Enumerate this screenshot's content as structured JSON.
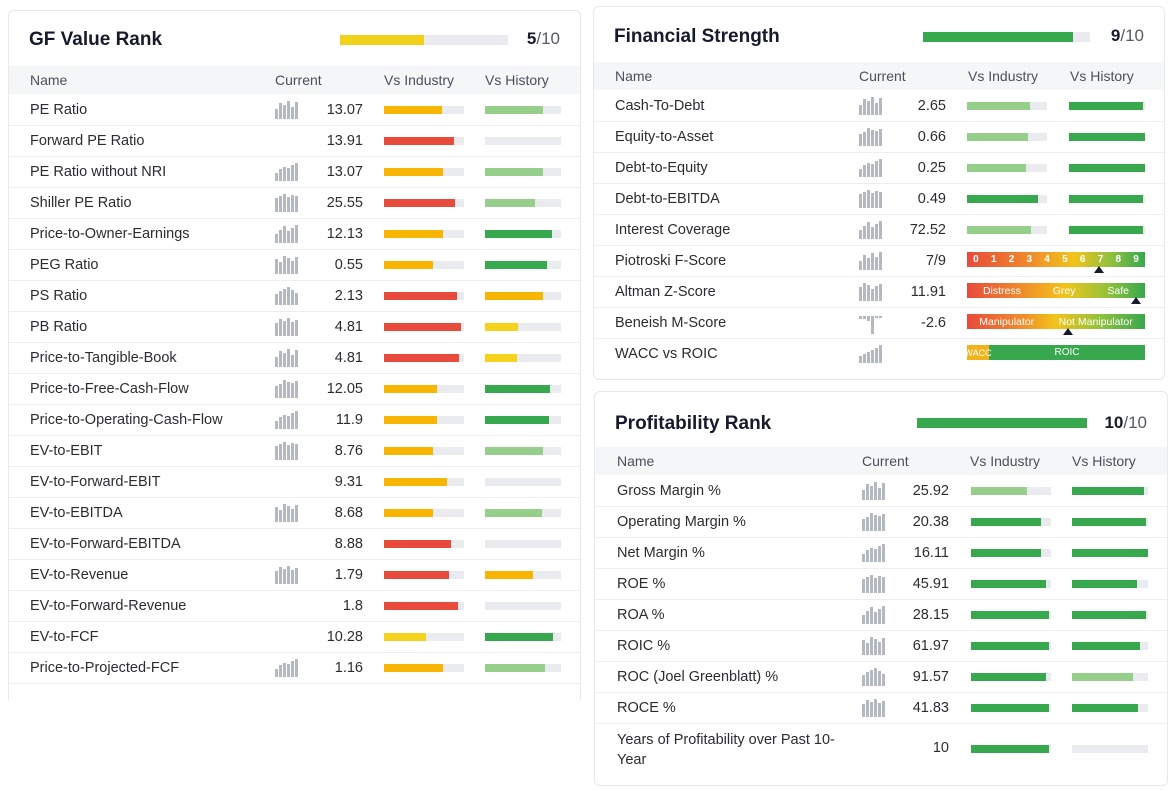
{
  "colors": {
    "red": "#e84a3c",
    "orange": "#f7b500",
    "yellow": "#f5d21b",
    "light_green": "#95cf8b",
    "green": "#37a84d",
    "track": "#e9ebef"
  },
  "columns": {
    "name": "Name",
    "current": "Current",
    "vs_industry": "Vs Industry",
    "vs_history": "Vs History"
  },
  "gf_value_rank": {
    "title": "GF Value Rank",
    "score": "5",
    "max": "/10",
    "fraction": 0.5,
    "bar_color": "#f2d11a",
    "rows": [
      {
        "name": "PE Ratio",
        "value": "13.07",
        "spark": true,
        "industry": 0.73,
        "industry_color": "orange",
        "history": 0.76,
        "history_color": "light_green"
      },
      {
        "name": "Forward PE Ratio",
        "value": "13.91",
        "spark": false,
        "industry": 0.88,
        "industry_color": "red",
        "history": 0.0,
        "history_color": "light_green"
      },
      {
        "name": "PE Ratio without NRI",
        "value": "13.07",
        "spark": true,
        "industry": 0.74,
        "industry_color": "orange",
        "history": 0.76,
        "history_color": "light_green"
      },
      {
        "name": "Shiller PE Ratio",
        "value": "25.55",
        "spark": true,
        "industry": 0.89,
        "industry_color": "red",
        "history": 0.66,
        "history_color": "light_green"
      },
      {
        "name": "Price-to-Owner-Earnings",
        "value": "12.13",
        "spark": true,
        "industry": 0.74,
        "industry_color": "orange",
        "history": 0.88,
        "history_color": "green"
      },
      {
        "name": "PEG Ratio",
        "value": "0.55",
        "spark": true,
        "industry": 0.61,
        "industry_color": "orange",
        "history": 0.82,
        "history_color": "green"
      },
      {
        "name": "PS Ratio",
        "value": "2.13",
        "spark": true,
        "industry": 0.91,
        "industry_color": "red",
        "history": 0.76,
        "history_color": "orange"
      },
      {
        "name": "PB Ratio",
        "value": "4.81",
        "spark": true,
        "industry": 0.96,
        "industry_color": "red",
        "history": 0.43,
        "history_color": "yellow"
      },
      {
        "name": "Price-to-Tangible-Book",
        "value": "4.81",
        "spark": true,
        "industry": 0.94,
        "industry_color": "red",
        "history": 0.42,
        "history_color": "yellow"
      },
      {
        "name": "Price-to-Free-Cash-Flow",
        "value": "12.05",
        "spark": true,
        "industry": 0.66,
        "industry_color": "orange",
        "history": 0.85,
        "history_color": "green"
      },
      {
        "name": "Price-to-Operating-Cash-Flow",
        "value": "11.9",
        "spark": true,
        "industry": 0.66,
        "industry_color": "orange",
        "history": 0.84,
        "history_color": "green"
      },
      {
        "name": "EV-to-EBIT",
        "value": "8.76",
        "spark": true,
        "industry": 0.61,
        "industry_color": "orange",
        "history": 0.76,
        "history_color": "light_green"
      },
      {
        "name": "EV-to-Forward-EBIT",
        "value": "9.31",
        "spark": false,
        "industry": 0.79,
        "industry_color": "orange",
        "history": 0.0,
        "history_color": "light_green"
      },
      {
        "name": "EV-to-EBITDA",
        "value": "8.68",
        "spark": true,
        "industry": 0.61,
        "industry_color": "orange",
        "history": 0.75,
        "history_color": "light_green"
      },
      {
        "name": "EV-to-Forward-EBITDA",
        "value": "8.88",
        "spark": false,
        "industry": 0.84,
        "industry_color": "red",
        "history": 0.0,
        "history_color": "light_green"
      },
      {
        "name": "EV-to-Revenue",
        "value": "1.79",
        "spark": true,
        "industry": 0.81,
        "industry_color": "red",
        "history": 0.63,
        "history_color": "orange"
      },
      {
        "name": "EV-to-Forward-Revenue",
        "value": "1.8",
        "spark": false,
        "industry": 0.93,
        "industry_color": "red",
        "history": 0.0,
        "history_color": "light_green"
      },
      {
        "name": "EV-to-FCF",
        "value": "10.28",
        "spark": false,
        "industry": 0.53,
        "industry_color": "yellow",
        "history": 0.9,
        "history_color": "green"
      },
      {
        "name": "Price-to-Projected-FCF",
        "value": "1.16",
        "spark": true,
        "industry": 0.74,
        "industry_color": "orange",
        "history": 0.79,
        "history_color": "light_green"
      }
    ]
  },
  "financial_strength": {
    "title": "Financial Strength",
    "score": "9",
    "max": "/10",
    "fraction": 0.9,
    "bar_color": "#37a84d",
    "rows": [
      {
        "name": "Cash-To-Debt",
        "value": "2.65",
        "industry": 0.79,
        "industry_color": "light_green",
        "history": 0.97,
        "history_color": "green"
      },
      {
        "name": "Equity-to-Asset",
        "value": "0.66",
        "industry": 0.76,
        "industry_color": "light_green",
        "history": 1.0,
        "history_color": "green"
      },
      {
        "name": "Debt-to-Equity",
        "value": "0.25",
        "industry": 0.74,
        "industry_color": "light_green",
        "history": 1.0,
        "history_color": "green"
      },
      {
        "name": "Debt-to-EBITDA",
        "value": "0.49",
        "industry": 0.89,
        "industry_color": "green",
        "history": 0.97,
        "history_color": "green"
      },
      {
        "name": "Interest Coverage",
        "value": "72.52",
        "industry": 0.8,
        "industry_color": "light_green",
        "history": 0.97,
        "history_color": "green"
      }
    ],
    "piotroski": {
      "name": "Piotroski F-Score",
      "value": "7/9",
      "labels": [
        "0",
        "1",
        "2",
        "3",
        "4",
        "5",
        "6",
        "7",
        "8",
        "9"
      ],
      "marker": 0.74
    },
    "altman": {
      "name": "Altman Z-Score",
      "value": "11.91",
      "labels": [
        "Distress",
        "Grey",
        "Safe"
      ],
      "marker": 0.95
    },
    "beneish": {
      "name": "Beneish M-Score",
      "value": "-2.6",
      "labels": [
        "Manipulator",
        "Not Manipulator"
      ],
      "marker": 0.57
    },
    "wacc": {
      "name": "WACC vs ROIC",
      "wacc_label": "WACC",
      "roic_label": "ROIC"
    }
  },
  "profitability_rank": {
    "title": "Profitability Rank",
    "score": "10",
    "max": "/10",
    "fraction": 1.0,
    "bar_color": "#37a84d",
    "rows": [
      {
        "name": "Gross Margin %",
        "value": "25.92",
        "industry": 0.7,
        "industry_color": "light_green",
        "history": 0.95,
        "history_color": "green"
      },
      {
        "name": "Operating Margin %",
        "value": "20.38",
        "industry": 0.88,
        "industry_color": "green",
        "history": 0.97,
        "history_color": "green"
      },
      {
        "name": "Net Margin %",
        "value": "16.11",
        "industry": 0.87,
        "industry_color": "green",
        "history": 1.0,
        "history_color": "green"
      },
      {
        "name": "ROE %",
        "value": "45.91",
        "industry": 0.94,
        "industry_color": "green",
        "history": 0.85,
        "history_color": "green"
      },
      {
        "name": "ROA %",
        "value": "28.15",
        "industry": 0.98,
        "industry_color": "green",
        "history": 0.97,
        "history_color": "green"
      },
      {
        "name": "ROIC %",
        "value": "61.97",
        "industry": 0.98,
        "industry_color": "green",
        "history": 0.9,
        "history_color": "green"
      },
      {
        "name": "ROC (Joel Greenblatt) %",
        "value": "91.57",
        "industry": 0.94,
        "industry_color": "green",
        "history": 0.8,
        "history_color": "light_green"
      },
      {
        "name": "ROCE %",
        "value": "41.83",
        "industry": 0.97,
        "industry_color": "green",
        "history": 0.87,
        "history_color": "green"
      }
    ],
    "years": {
      "name": "Years of Profitability over Past 10-Year",
      "value": "10",
      "industry": 0.97,
      "industry_color": "green",
      "history": 0.0,
      "history_color": "green"
    }
  }
}
